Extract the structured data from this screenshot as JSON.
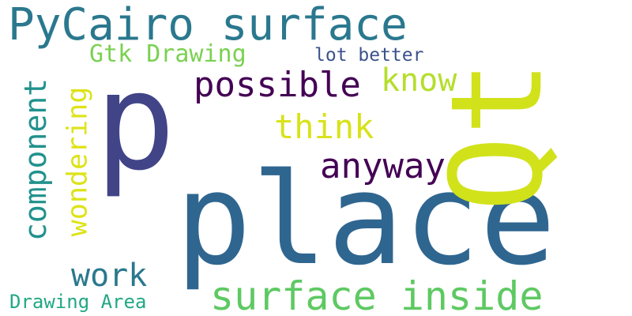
{
  "words": [
    {
      "id": "place",
      "text": "place",
      "color": "#2f6690"
    },
    {
      "id": "p",
      "text": "p",
      "color": "#414487"
    },
    {
      "id": "qt",
      "text": "Qt",
      "color": "#d1e21b"
    },
    {
      "id": "pycairo-surface",
      "text": "PyCairo surface",
      "color": "#2a788e"
    },
    {
      "id": "surface-inside",
      "text": "surface inside",
      "color": "#5ec962"
    },
    {
      "id": "anyway",
      "text": "anyway",
      "color": "#440154"
    },
    {
      "id": "possible",
      "text": "possible",
      "color": "#440154"
    },
    {
      "id": "know",
      "text": "know",
      "color": "#b5de2b"
    },
    {
      "id": "think",
      "text": "think",
      "color": "#d8e219"
    },
    {
      "id": "gtk-drawing",
      "text": "Gtk Drawing",
      "color": "#7ad151"
    },
    {
      "id": "lot-better",
      "text": "lot better",
      "color": "#3b528b"
    },
    {
      "id": "component",
      "text": "component",
      "color": "#21918c"
    },
    {
      "id": "wondering",
      "text": "wondering",
      "color": "#dde318"
    },
    {
      "id": "work",
      "text": "work",
      "color": "#2a788e"
    },
    {
      "id": "drawing-area",
      "text": "Drawing Area",
      "color": "#22a884"
    }
  ]
}
